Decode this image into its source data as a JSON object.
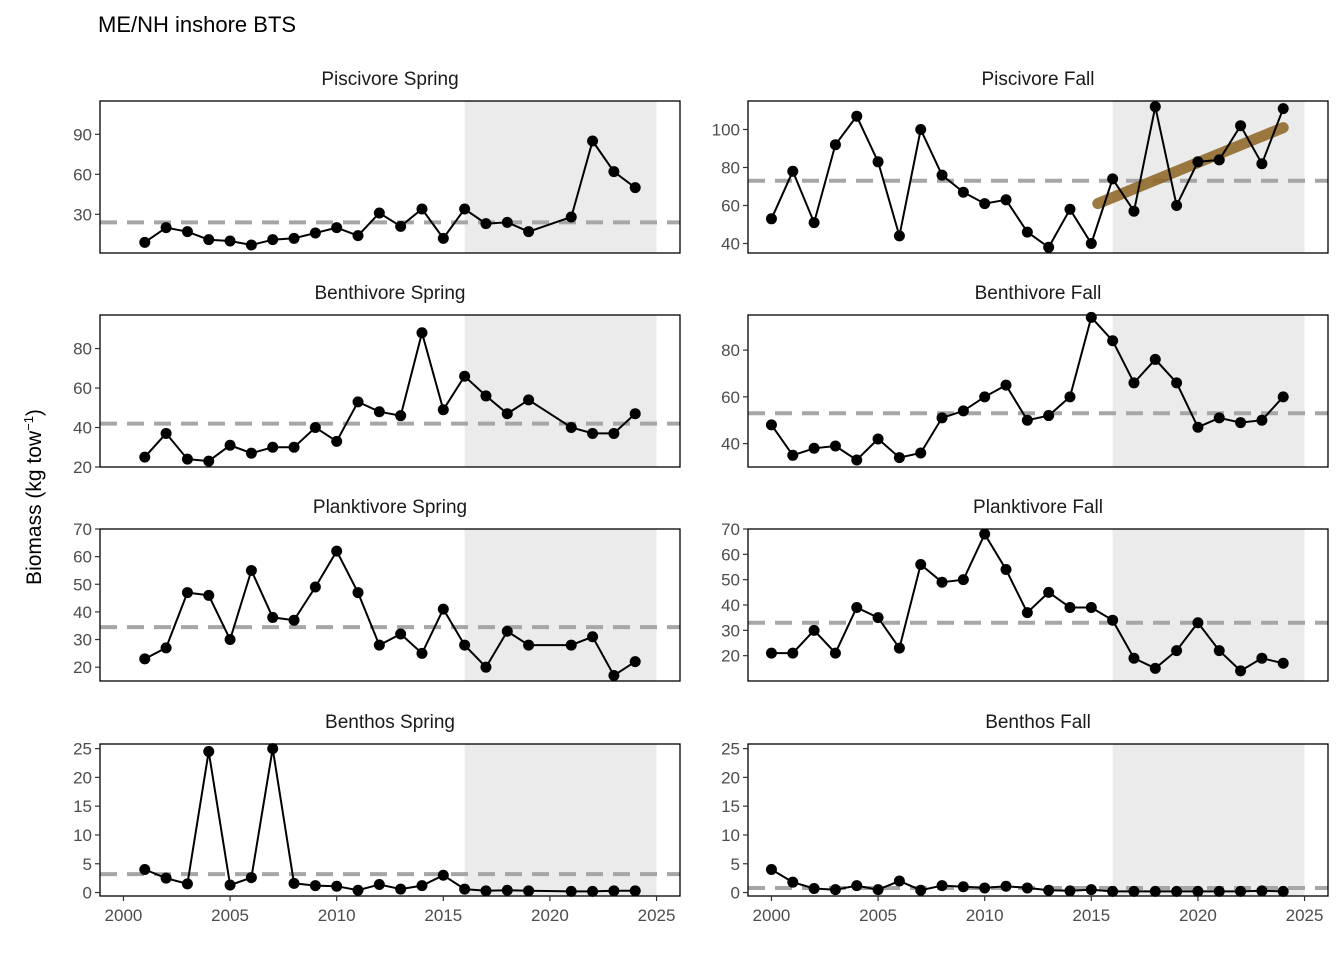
{
  "title": "ME/NH inshore BTS",
  "ylabel_main": "Biomass (kg tow",
  "ylabel_sup": "−1",
  "ylabel_close": ")",
  "xlabel": "",
  "style": {
    "line_color": "#000000",
    "point_color": "#000000",
    "mean_line_color": "#a6a6a6",
    "shade_color": "#ebebeb",
    "trend_color": "#8b6320"
  },
  "chart_data": [
    {
      "type": "line",
      "panel": "Piscivore Spring",
      "x": [
        2001,
        2002,
        2003,
        2004,
        2005,
        2006,
        2007,
        2008,
        2009,
        2010,
        2011,
        2012,
        2013,
        2014,
        2015,
        2016,
        2017,
        2018,
        2019,
        2021,
        2022,
        2023,
        2024
      ],
      "y": [
        9,
        20,
        17,
        11,
        10,
        7,
        11,
        12,
        16,
        20,
        14,
        31,
        21,
        34,
        12,
        34,
        23,
        24,
        17,
        28,
        85,
        62,
        50
      ],
      "ylim": [
        1,
        115
      ],
      "yticks": [
        30,
        60,
        90
      ],
      "mean": 24,
      "shade": [
        2016,
        2025
      ],
      "trend": null
    },
    {
      "type": "line",
      "panel": "Piscivore Fall",
      "x": [
        2000,
        2001,
        2002,
        2003,
        2004,
        2005,
        2006,
        2007,
        2008,
        2009,
        2010,
        2011,
        2012,
        2013,
        2014,
        2015,
        2016,
        2017,
        2018,
        2019,
        2020,
        2021,
        2022,
        2023,
        2024
      ],
      "y": [
        53,
        78,
        51,
        92,
        107,
        83,
        44,
        100,
        76,
        67,
        61,
        63,
        46,
        38,
        58,
        40,
        74,
        57,
        112,
        60,
        83,
        84,
        102,
        82,
        111
      ],
      "ylim": [
        35,
        115
      ],
      "yticks": [
        40,
        60,
        80,
        100
      ],
      "mean": 73,
      "shade": [
        2016,
        2025
      ],
      "trend": [
        [
          2015.3,
          61
        ],
        [
          2024,
          101
        ]
      ]
    },
    {
      "type": "line",
      "panel": "Benthivore Spring",
      "x": [
        2001,
        2002,
        2003,
        2004,
        2005,
        2006,
        2007,
        2008,
        2009,
        2010,
        2011,
        2012,
        2013,
        2014,
        2015,
        2016,
        2017,
        2018,
        2019,
        2021,
        2022,
        2023,
        2024
      ],
      "y": [
        25,
        37,
        24,
        23,
        31,
        27,
        30,
        30,
        40,
        33,
        53,
        48,
        46,
        88,
        49,
        66,
        56,
        47,
        54,
        40,
        37,
        37,
        47
      ],
      "ylim": [
        20,
        97
      ],
      "yticks": [
        20,
        40,
        60,
        80
      ],
      "mean": 42,
      "shade": [
        2016,
        2025
      ],
      "trend": null
    },
    {
      "type": "line",
      "panel": "Benthivore Fall",
      "x": [
        2000,
        2001,
        2002,
        2003,
        2004,
        2005,
        2006,
        2007,
        2008,
        2009,
        2010,
        2011,
        2012,
        2013,
        2014,
        2015,
        2016,
        2017,
        2018,
        2019,
        2020,
        2021,
        2022,
        2023,
        2024
      ],
      "y": [
        48,
        35,
        38,
        39,
        33,
        42,
        34,
        36,
        51,
        54,
        60,
        65,
        50,
        52,
        60,
        94,
        84,
        66,
        76,
        66,
        47,
        51,
        49,
        50,
        60
      ],
      "ylim": [
        30,
        95
      ],
      "yticks": [
        40,
        60,
        80
      ],
      "mean": 53,
      "shade": [
        2016,
        2025
      ],
      "trend": null
    },
    {
      "type": "line",
      "panel": "Planktivore Spring",
      "x": [
        2001,
        2002,
        2003,
        2004,
        2005,
        2006,
        2007,
        2008,
        2009,
        2010,
        2011,
        2012,
        2013,
        2014,
        2015,
        2016,
        2017,
        2018,
        2019,
        2021,
        2022,
        2023,
        2024
      ],
      "y": [
        23,
        27,
        47,
        46,
        30,
        55,
        38,
        37,
        49,
        62,
        47,
        28,
        32,
        25,
        41,
        28,
        20,
        33,
        28,
        28,
        31,
        17,
        22
      ],
      "ylim": [
        15,
        70
      ],
      "yticks": [
        20,
        30,
        40,
        50,
        60,
        70
      ],
      "mean": 34.5,
      "shade": [
        2016,
        2025
      ],
      "trend": null
    },
    {
      "type": "line",
      "panel": "Planktivore Fall",
      "x": [
        2000,
        2001,
        2002,
        2003,
        2004,
        2005,
        2006,
        2007,
        2008,
        2009,
        2010,
        2011,
        2012,
        2013,
        2014,
        2015,
        2016,
        2017,
        2018,
        2019,
        2020,
        2021,
        2022,
        2023,
        2024
      ],
      "y": [
        21,
        21,
        30,
        21,
        39,
        35,
        23,
        56,
        49,
        50,
        68,
        54,
        37,
        45,
        39,
        39,
        34,
        19,
        15,
        22,
        33,
        22,
        14,
        19,
        17
      ],
      "ylim": [
        10,
        70
      ],
      "yticks": [
        20,
        30,
        40,
        50,
        60,
        70
      ],
      "mean": 33,
      "shade": [
        2016,
        2025
      ],
      "trend": null
    },
    {
      "type": "line",
      "panel": "Benthos Spring",
      "x": [
        2001,
        2002,
        2003,
        2004,
        2005,
        2006,
        2007,
        2008,
        2009,
        2010,
        2011,
        2012,
        2013,
        2014,
        2015,
        2016,
        2017,
        2018,
        2019,
        2021,
        2022,
        2023,
        2024
      ],
      "y": [
        4,
        2.5,
        1.5,
        24.5,
        1.3,
        2.6,
        25,
        1.6,
        1.2,
        1.1,
        0.4,
        1.4,
        0.6,
        1.2,
        3,
        0.6,
        0.3,
        0.4,
        0.3,
        0.2,
        0.2,
        0.3,
        0.3
      ],
      "ylim": [
        -0.6,
        25.8
      ],
      "yticks": [
        0,
        5,
        10,
        15,
        20,
        25
      ],
      "mean": 3.2,
      "shade": [
        2016,
        2025
      ],
      "trend": null
    },
    {
      "type": "line",
      "panel": "Benthos Fall",
      "x": [
        2000,
        2001,
        2002,
        2003,
        2004,
        2005,
        2006,
        2007,
        2008,
        2009,
        2010,
        2011,
        2012,
        2013,
        2014,
        2015,
        2016,
        2017,
        2018,
        2019,
        2020,
        2021,
        2022,
        2023,
        2024
      ],
      "y": [
        4,
        1.8,
        0.7,
        0.5,
        1.2,
        0.5,
        2,
        0.4,
        1.2,
        1,
        0.8,
        1.1,
        0.8,
        0.4,
        0.3,
        0.5,
        0.2,
        0.2,
        0.2,
        0.2,
        0.2,
        0.2,
        0.2,
        0.3,
        0.2
      ],
      "ylim": [
        -0.6,
        25.8
      ],
      "yticks": [
        0,
        5,
        10,
        15,
        20,
        25
      ],
      "mean": 0.8,
      "shade": [
        2016,
        2025
      ],
      "trend": null
    }
  ],
  "xaxis": {
    "xlim": [
      1998.9,
      2026.1
    ],
    "xticks": [
      2000,
      2005,
      2010,
      2015,
      2020,
      2025
    ]
  }
}
